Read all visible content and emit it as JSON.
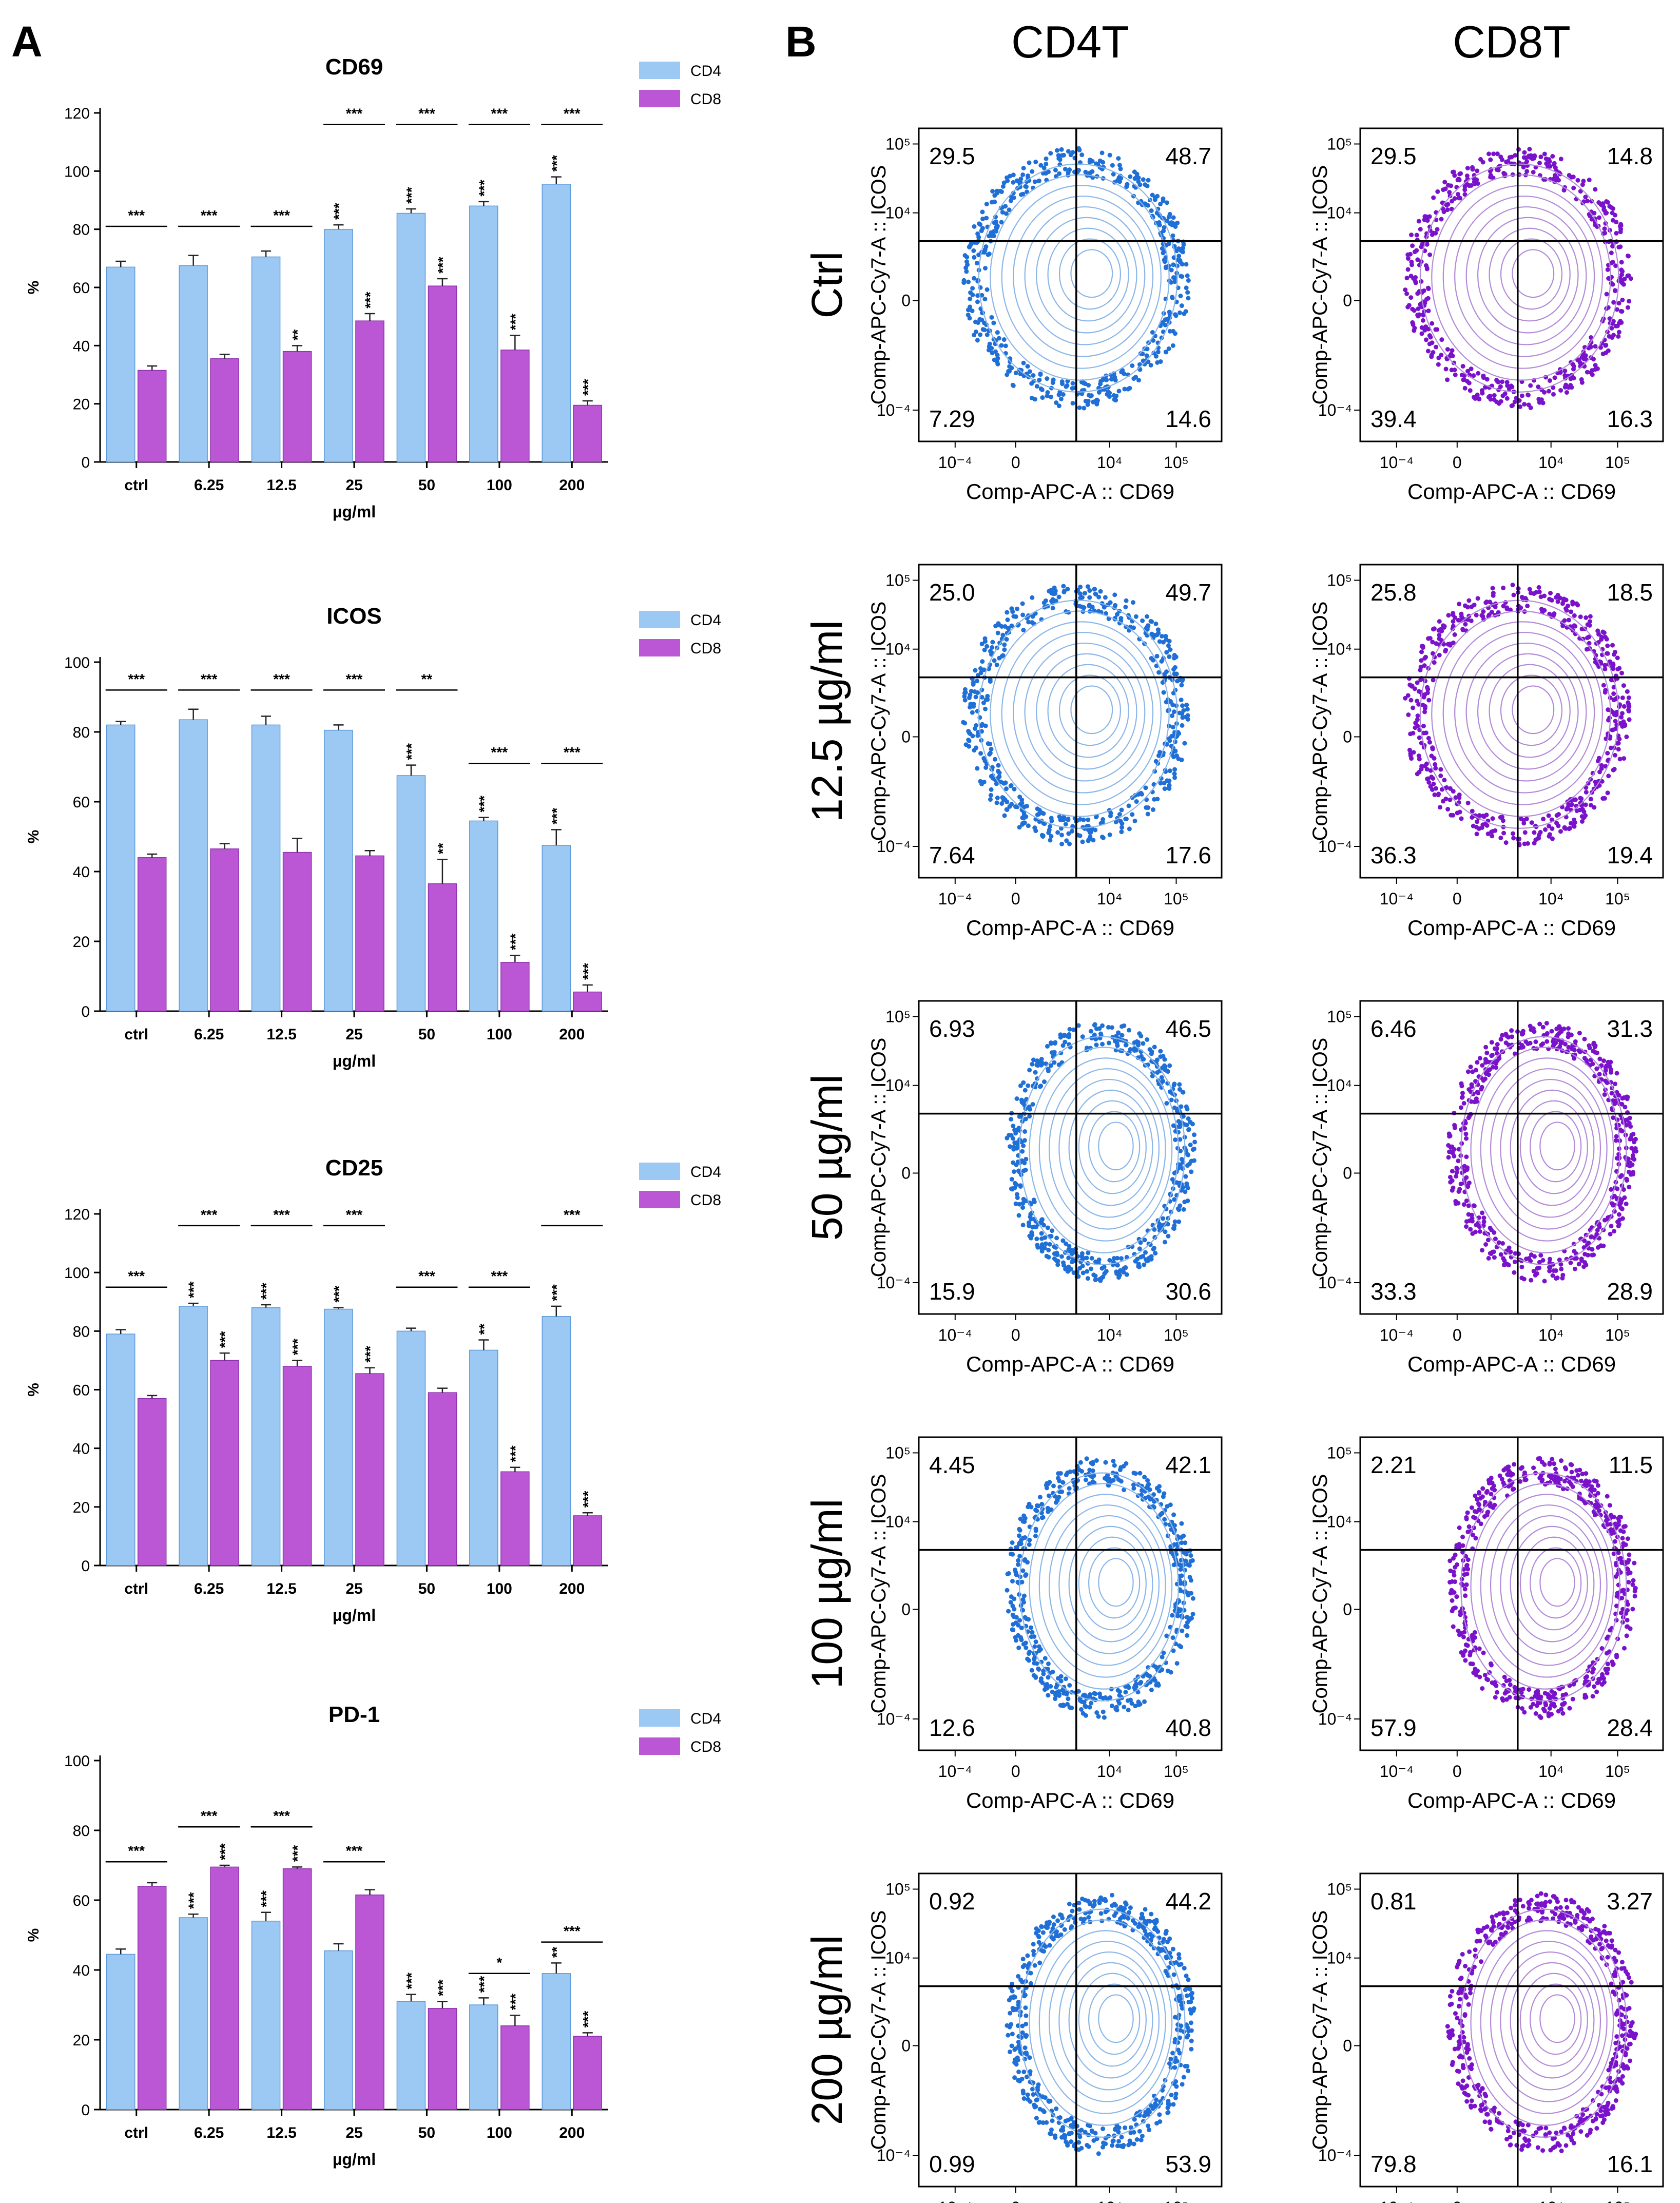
{
  "panel_labels": {
    "a": "A",
    "b": "B"
  },
  "common": {
    "categories": [
      "ctrl",
      "6.25",
      "12.5",
      "25",
      "50",
      "100",
      "200"
    ],
    "xlabel": "µg/ml",
    "ylabel": "%",
    "series_names": [
      "CD4",
      "CD8"
    ],
    "colors": {
      "CD4": "#9cc8f4",
      "CD8": "#bb57d4",
      "cd4_dots": "#1f6fd6",
      "cd8_dots": "#7a12cc",
      "contour_cd4": "#8ab6e8",
      "contour_cd8": "#b38ad8"
    }
  },
  "chart_data": [
    {
      "type": "bar",
      "title": "CD69",
      "ylim": [
        0,
        120
      ],
      "yticks": [
        "0",
        "20",
        "40",
        "60",
        "80",
        "100",
        "120"
      ],
      "categories": [
        "ctrl",
        "6.25",
        "12.5",
        "25",
        "50",
        "100",
        "200"
      ],
      "xlabel": "µg/ml",
      "ylabel": "%",
      "series": [
        {
          "name": "CD4",
          "values": [
            67,
            67.5,
            70.5,
            80,
            85.5,
            88,
            95.5
          ],
          "errors": [
            2,
            3.5,
            2,
            1.5,
            1.5,
            1.5,
            2.5
          ],
          "stars": [
            "",
            "",
            "",
            "***",
            "***",
            "***",
            "***"
          ]
        },
        {
          "name": "CD8",
          "values": [
            31.5,
            35.5,
            38,
            48.5,
            60.5,
            38.5,
            19.5
          ],
          "errors": [
            1.5,
            1.5,
            2,
            2.5,
            2.5,
            5,
            1.5
          ],
          "stars": [
            "",
            "",
            "**",
            "***",
            "***",
            "***",
            "***"
          ]
        }
      ],
      "brackets": [
        "***",
        "***",
        "***",
        "***",
        "***",
        "***",
        "***"
      ],
      "bracket_y": [
        81,
        81,
        81,
        116,
        116,
        116,
        116
      ]
    },
    {
      "type": "bar",
      "title": "ICOS",
      "ylim": [
        0,
        100
      ],
      "yticks": [
        "0",
        "20",
        "40",
        "60",
        "80",
        "100"
      ],
      "categories": [
        "ctrl",
        "6.25",
        "12.5",
        "25",
        "50",
        "100",
        "200"
      ],
      "xlabel": "µg/ml",
      "ylabel": "%",
      "series": [
        {
          "name": "CD4",
          "values": [
            82,
            83.5,
            82,
            80.5,
            67.5,
            54.5,
            47.5
          ],
          "errors": [
            1,
            3,
            2.5,
            1.5,
            3,
            1,
            4.5
          ],
          "stars": [
            "",
            "",
            "",
            "",
            "***",
            "***",
            "***"
          ]
        },
        {
          "name": "CD8",
          "values": [
            44,
            46.5,
            45.5,
            44.5,
            36.5,
            14,
            5.5
          ],
          "errors": [
            1,
            1.5,
            4,
            1.5,
            7,
            2,
            2
          ],
          "stars": [
            "",
            "",
            "",
            "",
            "**",
            "***",
            "***"
          ]
        }
      ],
      "brackets": [
        "***",
        "***",
        "***",
        "***",
        "**",
        "***",
        "***"
      ],
      "bracket_y": [
        92,
        92,
        92,
        92,
        92,
        71,
        71
      ]
    },
    {
      "type": "bar",
      "title": "CD25",
      "ylim": [
        0,
        120
      ],
      "yticks": [
        "0",
        "20",
        "40",
        "60",
        "80",
        "100",
        "120"
      ],
      "categories": [
        "ctrl",
        "6.25",
        "12.5",
        "25",
        "50",
        "100",
        "200"
      ],
      "xlabel": "µg/ml",
      "ylabel": "%",
      "series": [
        {
          "name": "CD4",
          "values": [
            79,
            88.5,
            88,
            87.5,
            80,
            73.5,
            85
          ],
          "errors": [
            1.5,
            1,
            1,
            0.5,
            1,
            3.5,
            3.5
          ],
          "stars": [
            "",
            "***",
            "***",
            "***",
            "",
            "**",
            "***"
          ]
        },
        {
          "name": "CD8",
          "values": [
            57,
            70,
            68,
            65.5,
            59,
            32,
            17
          ],
          "errors": [
            1,
            2.5,
            2,
            2,
            1.5,
            1.5,
            1
          ],
          "stars": [
            "",
            "***",
            "***",
            "***",
            "",
            "***",
            "***"
          ]
        }
      ],
      "brackets": [
        "***",
        "***",
        "***",
        "***",
        "***",
        "***",
        "***"
      ],
      "bracket_y": [
        95,
        116,
        116,
        116,
        95,
        95,
        116
      ]
    },
    {
      "type": "bar",
      "title": "PD-1",
      "ylim": [
        0,
        100
      ],
      "yticks": [
        "0",
        "20",
        "40",
        "60",
        "80",
        "100"
      ],
      "categories": [
        "ctrl",
        "6.25",
        "12.5",
        "25",
        "50",
        "100",
        "200"
      ],
      "xlabel": "µg/ml",
      "ylabel": "%",
      "series": [
        {
          "name": "CD4",
          "values": [
            44.5,
            55,
            54,
            45.5,
            31,
            30,
            39
          ],
          "errors": [
            1.5,
            1,
            2.5,
            2,
            2,
            2,
            3
          ],
          "stars": [
            "",
            "***",
            "***",
            "",
            "***",
            "***",
            "**"
          ]
        },
        {
          "name": "CD8",
          "values": [
            64,
            69.5,
            69,
            61.5,
            29,
            24,
            21
          ],
          "errors": [
            1,
            0.5,
            0.5,
            1.5,
            2,
            3,
            1
          ],
          "stars": [
            "",
            "***",
            "***",
            "",
            "***",
            "***",
            "***"
          ]
        }
      ],
      "brackets": [
        "***",
        "***",
        "***",
        "***",
        "",
        "*",
        "***"
      ],
      "bracket_y": [
        71,
        81,
        81,
        71,
        0,
        39,
        48
      ]
    }
  ],
  "flow": {
    "col_headers": [
      "CD4T",
      "CD8T"
    ],
    "row_labels": [
      "Ctrl",
      "12.5 µg/ml",
      "50 µg/ml",
      "100 µg/ml",
      "200 µg/ml"
    ],
    "xlabel": "Comp-APC-A :: CD69",
    "ylabel": "Comp-APC-Cy7-A :: ICOS",
    "x_ticks": [
      "10⁻⁴",
      "0",
      "10⁴",
      "10⁵"
    ],
    "y_ticks": [
      "10⁵",
      "10⁴",
      "0",
      "10⁻⁴"
    ],
    "plots": [
      {
        "q": [
          "29.5",
          "48.7",
          "7.29",
          "14.6"
        ]
      },
      {
        "q": [
          "29.5",
          "14.8",
          "39.4",
          "16.3"
        ]
      },
      {
        "q": [
          "25.0",
          "49.7",
          "7.64",
          "17.6"
        ]
      },
      {
        "q": [
          "25.8",
          "18.5",
          "36.3",
          "19.4"
        ]
      },
      {
        "q": [
          "6.93",
          "46.5",
          "15.9",
          "30.6"
        ]
      },
      {
        "q": [
          "6.46",
          "31.3",
          "33.3",
          "28.9"
        ]
      },
      {
        "q": [
          "4.45",
          "42.1",
          "12.6",
          "40.8"
        ]
      },
      {
        "q": [
          "2.21",
          "11.5",
          "57.9",
          "28.4"
        ]
      },
      {
        "q": [
          "0.92",
          "44.2",
          "0.99",
          "53.9"
        ]
      },
      {
        "q": [
          "0.81",
          "3.27",
          "79.8",
          "16.1"
        ]
      }
    ]
  }
}
